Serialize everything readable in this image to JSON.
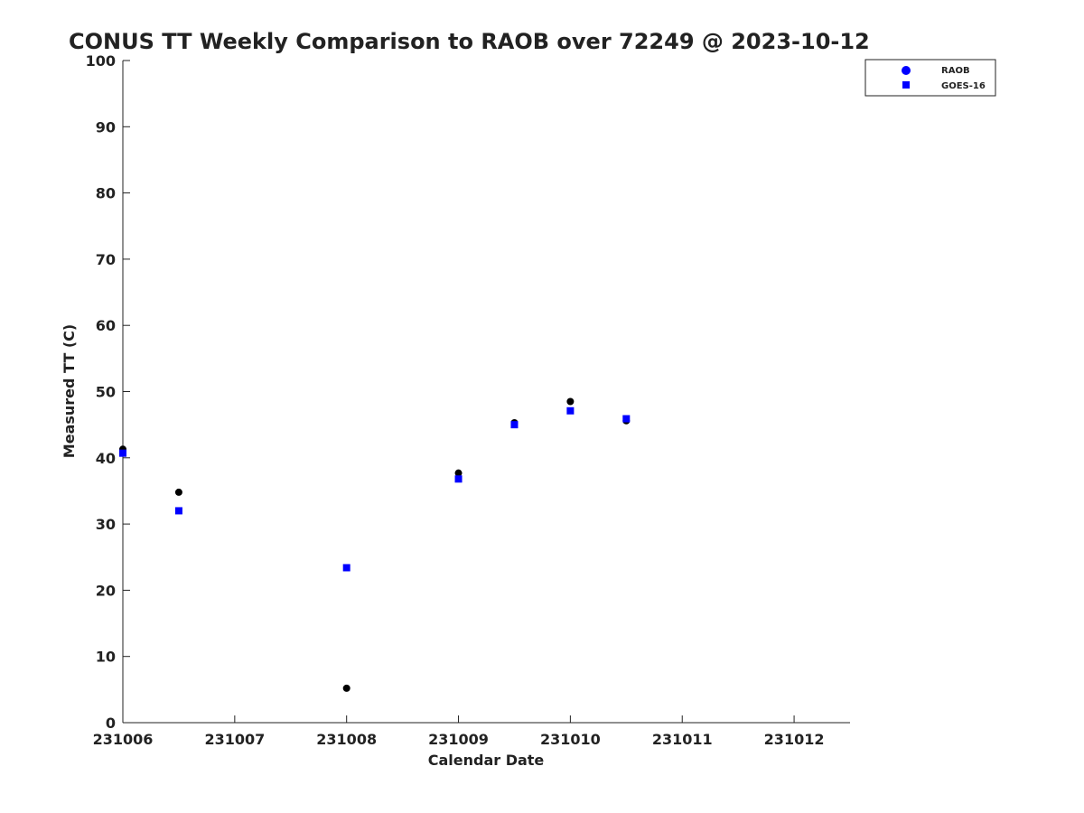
{
  "chart_data": {
    "type": "scatter",
    "title": "CONUS TT Weekly Comparison to RAOB over 72249 @ 2023-10-12",
    "xlabel": "Calendar Date",
    "ylabel": "Measured TT (C)",
    "xlim": [
      231006,
      231012.5
    ],
    "ylim": [
      0,
      100
    ],
    "x_ticks": [
      231006,
      231007,
      231008,
      231009,
      231010,
      231011,
      231012
    ],
    "y_ticks": [
      0,
      10,
      20,
      30,
      40,
      50,
      60,
      70,
      80,
      90,
      100
    ],
    "legend_position": "top-right",
    "grid": false,
    "series": [
      {
        "name": "RAOB",
        "marker": "circle",
        "color": "#000000",
        "legend_color": "#0000ff",
        "x": [
          231006,
          231006.5,
          231008,
          231009,
          231009.5,
          231010,
          231010.5
        ],
        "y": [
          41.3,
          34.8,
          5.2,
          37.7,
          45.3,
          48.5,
          45.6
        ]
      },
      {
        "name": "GOES-16",
        "marker": "square",
        "color": "#0000ff",
        "legend_color": "#0000ff",
        "x": [
          231006,
          231006.5,
          231008,
          231009,
          231009.5,
          231010,
          231010.5
        ],
        "y": [
          40.7,
          32.0,
          23.4,
          36.8,
          45.0,
          47.1,
          45.9
        ]
      }
    ]
  }
}
